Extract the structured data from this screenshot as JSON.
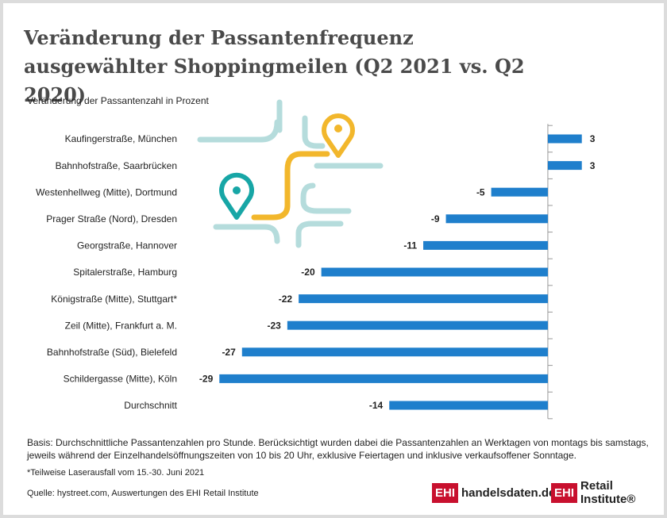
{
  "chart_data": {
    "type": "hbar",
    "title": "Veränderung der Passantenfrequenz ausgewählter Shoppingmeilen (Q2 2021 vs. Q2 2020)",
    "subtitle": "Veränderung der Passantenzahl in Prozent",
    "categories": [
      "Kaufingerstraße, München",
      "Bahnhofstraße, Saarbrücken",
      "Westenhellweg (Mitte), Dortmund",
      "Prager Straße (Nord), Dresden",
      "Georgstraße, Hannover",
      "Spitalerstraße, Hamburg",
      "Königstraße (Mitte), Stuttgart*",
      "Zeil (Mitte), Frankfurt a. M.",
      "Bahnhofstraße (Süd), Bielefeld",
      "Schildergasse (Mitte), Köln",
      "Durchschnitt"
    ],
    "values": [
      3,
      3,
      -5,
      -9,
      -11,
      -20,
      -22,
      -23,
      -27,
      -29,
      -14
    ],
    "color": "#1f7fcc",
    "xlim": [
      -30,
      4
    ],
    "notes": [
      "Basis: Durchschnittliche Passantenzahlen pro Stunde. Berücksichtigt wurden dabei die Passantenzahlen an Werktagen von montags bis samstags, jeweils während der Einzelhandelsöffnungszeiten von 10 bis 20 Uhr, exklusive Feiertagen und inklusive verkaufsoffener Sonntage.",
      "*Teilweise Laserausfall vom 15.-30. Juni 2021"
    ],
    "source": "Quelle: hystreet.com, Auswertungen des EHI Retail Institute"
  },
  "logos": [
    {
      "mark": "EHI",
      "text": "handelsdaten.de"
    },
    {
      "mark": "EHI",
      "text": "Retail Institute®"
    }
  ]
}
